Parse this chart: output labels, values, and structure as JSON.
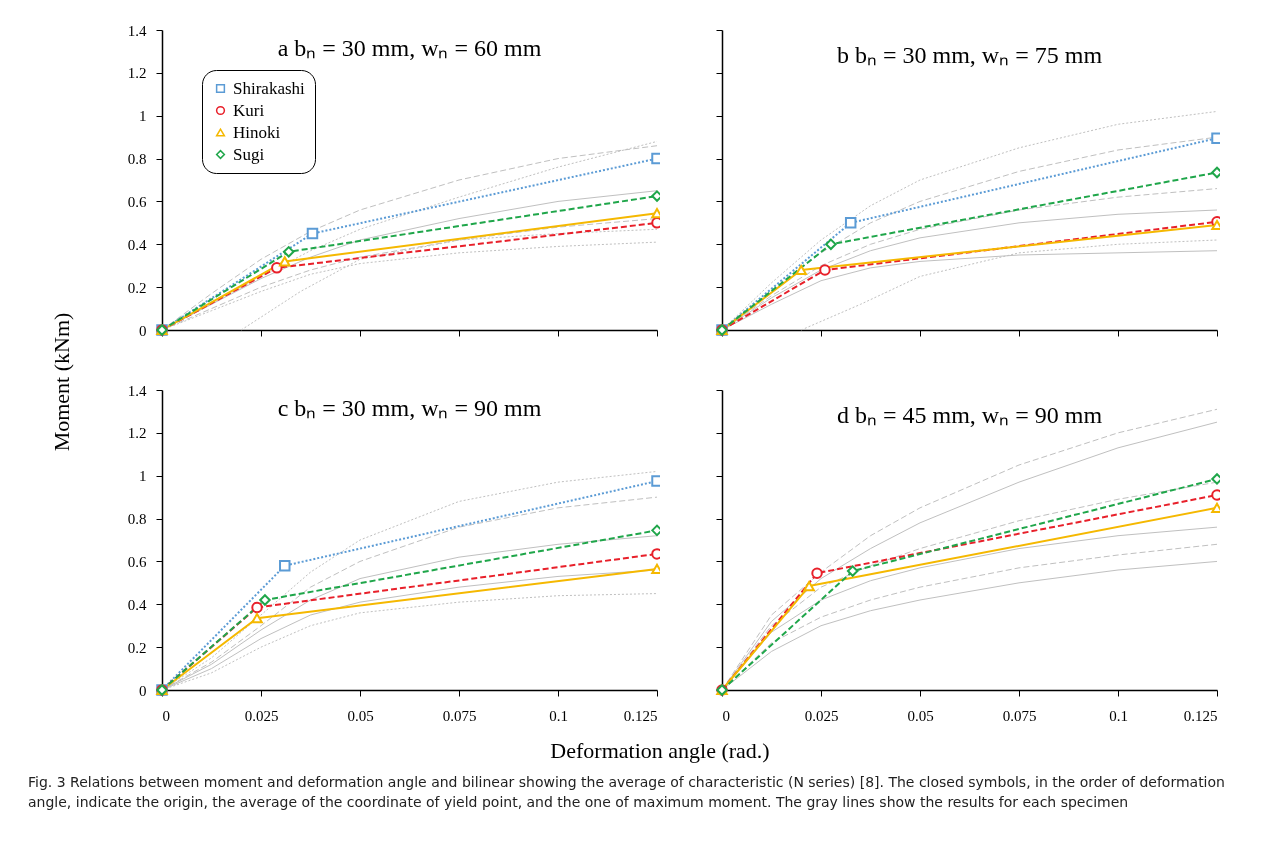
{
  "chart_data": [
    {
      "type": "line",
      "title": "a  bₙ = 30 mm, wₙ = 60 mm",
      "xlabel": "Deformation angle (rad.)",
      "ylabel": "Moment (kNm)",
      "annotations": [
        "Fig. 3  Relations between moment and deformation angle and bilinear showing the average of characteristic (N series) [8]. The closed symbols, in the order of deformation angle, indicate the origin, the average of the coordinate of yield point, and the one of maximum moment. The gray lines show the results for each specimen"
      ],
      "xlim": [
        0,
        0.125
      ],
      "ylim": [
        0,
        1.4
      ],
      "xticks": [
        0,
        0.025,
        0.05,
        0.075,
        0.1,
        0.125
      ],
      "yticks": [
        0,
        0.2,
        0.4,
        0.6,
        0.8,
        1,
        1.2,
        1.4
      ],
      "tick_labels": "y",
      "legend": "top left",
      "series": [
        {
          "color": "#c0c0c0",
          "line_style": "dashed",
          "marker": "none",
          "x": [
            0,
            0.0125,
            0.025,
            0.0375,
            0.05,
            0.075,
            0.1,
            0.125
          ],
          "values": [
            0,
            0.17,
            0.33,
            0.46,
            0.56,
            0.7,
            0.8,
            0.86
          ]
        },
        {
          "color": "#c0c0c0",
          "line_style": "dotted",
          "marker": "none",
          "x": [
            0,
            0.0125,
            0.025,
            0.0375,
            0.05,
            0.075,
            0.1,
            0.125
          ],
          "values": [
            0,
            0.12,
            0.25,
            0.37,
            0.47,
            0.62,
            0.76,
            0.88
          ]
        },
        {
          "color": "#c0c0c0",
          "line_style": "solid",
          "marker": "none",
          "x": [
            0,
            0.0125,
            0.025,
            0.0375,
            0.05,
            0.075,
            0.1,
            0.125
          ],
          "values": [
            0,
            0.12,
            0.24,
            0.34,
            0.42,
            0.52,
            0.6,
            0.65
          ]
        },
        {
          "color": "#c0c0c0",
          "line_style": "dashed",
          "marker": "none",
          "x": [
            0,
            0.0125,
            0.025,
            0.0375,
            0.05,
            0.075,
            0.1,
            0.125
          ],
          "values": [
            0,
            0.1,
            0.2,
            0.28,
            0.34,
            0.42,
            0.48,
            0.52
          ]
        },
        {
          "color": "#c0c0c0",
          "line_style": "dotted",
          "marker": "none",
          "x": [
            0,
            0.0125,
            0.025,
            0.0375,
            0.05,
            0.075,
            0.1,
            0.125
          ],
          "values": [
            0,
            0.09,
            0.18,
            0.26,
            0.31,
            0.36,
            0.39,
            0.41
          ]
        },
        {
          "color": "#c0c0c0",
          "line_style": "dotted",
          "marker": "none",
          "x": [
            0.02,
            0.035,
            0.05,
            0.075,
            0.1,
            0.125
          ],
          "values": [
            0,
            0.18,
            0.33,
            0.42,
            0.45,
            0.47
          ]
        },
        {
          "name": "Shirakashi",
          "color": "#5b9bd5",
          "line_style": "dotted",
          "marker": "square",
          "x": [
            0,
            0.038,
            0.125
          ],
          "values": [
            0,
            0.45,
            0.8
          ]
        },
        {
          "name": "Kuri",
          "color": "#e8202a",
          "line_style": "dashed",
          "marker": "circle",
          "x": [
            0,
            0.029,
            0.125
          ],
          "values": [
            0,
            0.29,
            0.5
          ]
        },
        {
          "name": "Hinoki",
          "color": "#f5b800",
          "line_style": "solid",
          "marker": "triangle",
          "x": [
            0,
            0.031,
            0.125
          ],
          "values": [
            0,
            0.32,
            0.545
          ]
        },
        {
          "name": "Sugi",
          "color": "#1fa64a",
          "line_style": "dashed",
          "marker": "diamond",
          "x": [
            0,
            0.032,
            0.125
          ],
          "values": [
            0,
            0.365,
            0.625
          ]
        }
      ]
    },
    {
      "type": "line",
      "title": "b  bₙ = 30 mm, wₙ = 75 mm",
      "xlim": [
        0,
        0.125
      ],
      "ylim": [
        0,
        1.4
      ],
      "xticks": [
        0,
        0.025,
        0.05,
        0.075,
        0.1,
        0.125
      ],
      "yticks": [
        0,
        0.2,
        0.4,
        0.6,
        0.8,
        1,
        1.2,
        1.4
      ],
      "tick_labels": false,
      "series": [
        {
          "color": "#c0c0c0",
          "line_style": "dotted",
          "marker": "none",
          "x": [
            0,
            0.0125,
            0.025,
            0.0375,
            0.05,
            0.075,
            0.1,
            0.125
          ],
          "values": [
            0,
            0.22,
            0.42,
            0.58,
            0.7,
            0.85,
            0.96,
            1.02
          ]
        },
        {
          "color": "#c0c0c0",
          "line_style": "dashed",
          "marker": "none",
          "x": [
            0,
            0.0125,
            0.025,
            0.0375,
            0.05,
            0.075,
            0.1,
            0.125
          ],
          "values": [
            0,
            0.18,
            0.36,
            0.5,
            0.6,
            0.74,
            0.84,
            0.9
          ]
        },
        {
          "color": "#c0c0c0",
          "line_style": "dashed",
          "marker": "none",
          "x": [
            0,
            0.0125,
            0.025,
            0.0375,
            0.05,
            0.075,
            0.1,
            0.125
          ],
          "values": [
            0,
            0.16,
            0.3,
            0.4,
            0.47,
            0.56,
            0.62,
            0.66
          ]
        },
        {
          "color": "#c0c0c0",
          "line_style": "solid",
          "marker": "none",
          "x": [
            0,
            0.0125,
            0.025,
            0.0375,
            0.05,
            0.075,
            0.1,
            0.125
          ],
          "values": [
            0,
            0.15,
            0.28,
            0.37,
            0.43,
            0.5,
            0.54,
            0.56
          ]
        },
        {
          "color": "#c0c0c0",
          "line_style": "solid",
          "marker": "none",
          "x": [
            0,
            0.0125,
            0.025,
            0.0375,
            0.05,
            0.075,
            0.1,
            0.125
          ],
          "values": [
            0,
            0.12,
            0.23,
            0.29,
            0.32,
            0.35,
            0.36,
            0.37
          ]
        },
        {
          "color": "#c0c0c0",
          "line_style": "dotted",
          "marker": "none",
          "x": [
            0.02,
            0.035,
            0.05,
            0.075,
            0.1,
            0.125
          ],
          "values": [
            0,
            0.12,
            0.25,
            0.36,
            0.4,
            0.42
          ]
        },
        {
          "color": "#5b9bd5",
          "line_style": "dotted",
          "marker": "square",
          "x": [
            0,
            0.0325,
            0.125
          ],
          "values": [
            0,
            0.5,
            0.895
          ]
        },
        {
          "color": "#e8202a",
          "line_style": "dashed",
          "marker": "circle",
          "x": [
            0,
            0.026,
            0.125
          ],
          "values": [
            0,
            0.28,
            0.505
          ]
        },
        {
          "color": "#f5b800",
          "line_style": "solid",
          "marker": "triangle",
          "x": [
            0,
            0.02,
            0.125
          ],
          "values": [
            0,
            0.28,
            0.49
          ]
        },
        {
          "color": "#1fa64a",
          "line_style": "dashed",
          "marker": "diamond",
          "x": [
            0,
            0.0275,
            0.125
          ],
          "values": [
            0,
            0.4,
            0.735
          ]
        }
      ]
    },
    {
      "type": "line",
      "title": "c  bₙ = 30 mm, wₙ = 90 mm",
      "xlim": [
        0,
        0.125
      ],
      "ylim": [
        0,
        1.4
      ],
      "xticks": [
        0,
        0.025,
        0.05,
        0.075,
        0.1,
        0.125
      ],
      "yticks": [
        0,
        0.2,
        0.4,
        0.6,
        0.8,
        1,
        1.2,
        1.4
      ],
      "series": [
        {
          "color": "#c0c0c0",
          "line_style": "dotted",
          "marker": "none",
          "x": [
            0,
            0.0125,
            0.025,
            0.0375,
            0.05,
            0.075,
            0.1,
            0.125
          ],
          "values": [
            0,
            0.15,
            0.35,
            0.55,
            0.7,
            0.88,
            0.97,
            1.02
          ]
        },
        {
          "color": "#c0c0c0",
          "line_style": "dashed",
          "marker": "none",
          "x": [
            0,
            0.0125,
            0.025,
            0.0375,
            0.05,
            0.075,
            0.1,
            0.125
          ],
          "values": [
            0,
            0.13,
            0.3,
            0.48,
            0.6,
            0.76,
            0.85,
            0.9
          ]
        },
        {
          "color": "#c0c0c0",
          "line_style": "solid",
          "marker": "none",
          "x": [
            0,
            0.0125,
            0.025,
            0.0375,
            0.05,
            0.075,
            0.1,
            0.125
          ],
          "values": [
            0,
            0.12,
            0.28,
            0.42,
            0.52,
            0.62,
            0.68,
            0.72
          ]
        },
        {
          "color": "#c0c0c0",
          "line_style": "solid",
          "marker": "none",
          "x": [
            0,
            0.0125,
            0.025,
            0.0375,
            0.05,
            0.075,
            0.1,
            0.125
          ],
          "values": [
            0,
            0.1,
            0.24,
            0.35,
            0.41,
            0.48,
            0.53,
            0.56
          ]
        },
        {
          "color": "#c0c0c0",
          "line_style": "dotted",
          "marker": "none",
          "x": [
            0,
            0.0125,
            0.025,
            0.0375,
            0.05,
            0.075,
            0.1,
            0.125
          ],
          "values": [
            0,
            0.08,
            0.2,
            0.3,
            0.36,
            0.41,
            0.44,
            0.45
          ]
        },
        {
          "color": "#5b9bd5",
          "line_style": "dotted",
          "marker": "square",
          "x": [
            0,
            0.031,
            0.125
          ],
          "values": [
            0,
            0.58,
            0.975
          ]
        },
        {
          "color": "#e8202a",
          "line_style": "dashed",
          "marker": "circle",
          "x": [
            0,
            0.024,
            0.125
          ],
          "values": [
            0,
            0.385,
            0.635
          ]
        },
        {
          "color": "#f5b800",
          "line_style": "solid",
          "marker": "triangle",
          "x": [
            0,
            0.024,
            0.125
          ],
          "values": [
            0,
            0.335,
            0.565
          ]
        },
        {
          "color": "#1fa64a",
          "line_style": "dashed",
          "marker": "diamond",
          "x": [
            0,
            0.026,
            0.125
          ],
          "values": [
            0,
            0.42,
            0.745
          ]
        }
      ]
    },
    {
      "type": "line",
      "title": "d  bₙ = 45 mm, wₙ = 90 mm",
      "xlim": [
        0,
        0.125
      ],
      "ylim": [
        0,
        1.4
      ],
      "xticks": [
        0,
        0.025,
        0.05,
        0.075,
        0.1,
        0.125
      ],
      "yticks": [
        0,
        0.2,
        0.4,
        0.6,
        0.8,
        1,
        1.2,
        1.4
      ],
      "tick_labels": "x",
      "series": [
        {
          "color": "#c0c0c0",
          "line_style": "dashed",
          "marker": "none",
          "x": [
            0,
            0.0125,
            0.025,
            0.0375,
            0.05,
            0.075,
            0.1,
            0.125
          ],
          "values": [
            0,
            0.35,
            0.55,
            0.72,
            0.85,
            1.05,
            1.2,
            1.31
          ]
        },
        {
          "color": "#c0c0c0",
          "line_style": "solid",
          "marker": "none",
          "x": [
            0,
            0.0125,
            0.025,
            0.0375,
            0.05,
            0.075,
            0.1,
            0.125
          ],
          "values": [
            0,
            0.32,
            0.52,
            0.66,
            0.78,
            0.97,
            1.13,
            1.25
          ]
        },
        {
          "color": "#c0c0c0",
          "line_style": "dashed",
          "marker": "none",
          "x": [
            0,
            0.0125,
            0.025,
            0.0375,
            0.05,
            0.075,
            0.1,
            0.125
          ],
          "values": [
            0,
            0.3,
            0.48,
            0.58,
            0.66,
            0.79,
            0.89,
            0.97
          ]
        },
        {
          "color": "#c0c0c0",
          "line_style": "solid",
          "marker": "none",
          "x": [
            0,
            0.0125,
            0.025,
            0.0375,
            0.05,
            0.075,
            0.1,
            0.125
          ],
          "values": [
            0,
            0.27,
            0.42,
            0.51,
            0.57,
            0.66,
            0.72,
            0.76
          ]
        },
        {
          "color": "#c0c0c0",
          "line_style": "dashed",
          "marker": "none",
          "x": [
            0,
            0.0125,
            0.025,
            0.0375,
            0.05,
            0.075,
            0.1,
            0.125
          ],
          "values": [
            0,
            0.22,
            0.34,
            0.42,
            0.48,
            0.57,
            0.63,
            0.68
          ]
        },
        {
          "color": "#c0c0c0",
          "line_style": "solid",
          "marker": "none",
          "x": [
            0,
            0.0125,
            0.025,
            0.0375,
            0.05,
            0.075,
            0.1,
            0.125
          ],
          "values": [
            0,
            0.18,
            0.3,
            0.37,
            0.42,
            0.5,
            0.56,
            0.6
          ]
        },
        {
          "color": "#e8202a",
          "line_style": "dashed",
          "marker": "circle",
          "x": [
            0,
            0.024,
            0.125
          ],
          "values": [
            0,
            0.545,
            0.91
          ]
        },
        {
          "color": "#f5b800",
          "line_style": "solid",
          "marker": "triangle",
          "x": [
            0,
            0.022,
            0.125
          ],
          "values": [
            0,
            0.485,
            0.85
          ]
        },
        {
          "color": "#1fa64a",
          "line_style": "dashed",
          "marker": "diamond",
          "x": [
            0,
            0.033,
            0.125
          ],
          "values": [
            0,
            0.555,
            0.985
          ]
        }
      ]
    }
  ]
}
